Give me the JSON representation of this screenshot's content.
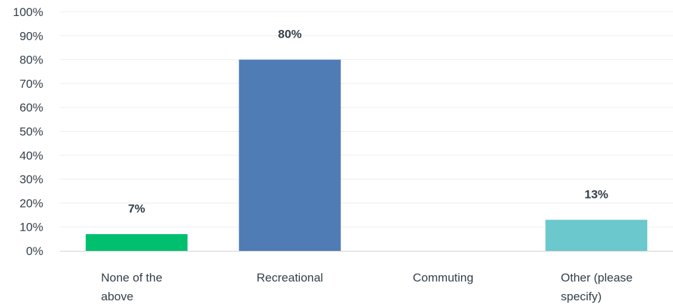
{
  "chart_data": {
    "type": "bar",
    "categories": [
      "None of the above",
      "Recreational",
      "Commuting",
      "Other (please specify)"
    ],
    "category_label_lines": [
      [
        "None of the",
        "above"
      ],
      [
        "Recreational"
      ],
      [
        "Commuting"
      ],
      [
        "Other (please",
        "specify)"
      ]
    ],
    "values": [
      7,
      80,
      0,
      13
    ],
    "data_labels": [
      "7%",
      "80%",
      "",
      "13%"
    ],
    "bar_colors": [
      "#00bf6f",
      "#507cb6",
      "#f9be00",
      "#6bc8cd"
    ],
    "ylim": [
      0,
      100
    ],
    "yticks": [
      0,
      10,
      20,
      30,
      40,
      50,
      60,
      70,
      80,
      90,
      100
    ],
    "ytick_labels": [
      "0%",
      "10%",
      "20%",
      "30%",
      "40%",
      "50%",
      "60%",
      "70%",
      "80%",
      "90%",
      "100%"
    ],
    "title": "",
    "xlabel": "",
    "ylabel": "",
    "grid": true,
    "legend": "none"
  }
}
